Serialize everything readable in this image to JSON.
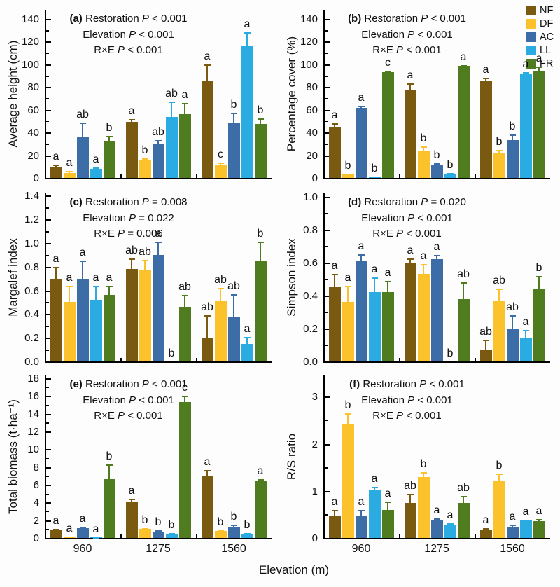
{
  "figure": {
    "xlabel": "Elevation (m)",
    "categories": [
      "960",
      "1275",
      "1560"
    ],
    "legend": [
      "NF",
      "DF",
      "AC",
      "LL",
      "FR"
    ],
    "colors": {
      "NF": "#7A5A10",
      "DF": "#FBC22C",
      "AC": "#3C6DA6",
      "LL": "#2AABE2",
      "FR": "#4E7C1E"
    },
    "axis_color": "#000000",
    "text_color": "#111111"
  },
  "chart_data": [
    {
      "type": "bar",
      "panel": "a",
      "ylabel": "Average height (cm)",
      "stats": [
        {
          "factor": "Restoration",
          "p": "< 0.001"
        },
        {
          "factor": "Elevation",
          "p": "< 0.001"
        },
        {
          "factor": "R×E",
          "p": "< 0.001"
        }
      ],
      "ymax": 148,
      "minor": 10,
      "yticks": [
        0,
        20,
        40,
        60,
        80,
        100,
        120,
        140
      ],
      "ytick_labels": [
        "0",
        "20",
        "40",
        "60",
        "80",
        "100",
        "120",
        "140"
      ],
      "categories": [
        "960",
        "1275",
        "1560"
      ],
      "show_x_labels": false,
      "series": [
        {
          "name": "NF",
          "values": [
            10,
            49.5,
            86
          ],
          "errors": [
            1.5,
            2,
            14
          ],
          "letters": [
            "a",
            "a",
            "a"
          ]
        },
        {
          "name": "DF",
          "values": [
            4.5,
            15.5,
            12
          ],
          "errors": [
            1.5,
            2,
            1.5
          ],
          "letters": [
            "a",
            "b",
            "c"
          ]
        },
        {
          "name": "AC",
          "values": [
            36,
            29.5,
            48.5
          ],
          "errors": [
            13,
            4,
            9
          ],
          "letters": [
            "ab",
            "ab",
            "b"
          ]
        },
        {
          "name": "LL",
          "values": [
            8,
            53.5,
            116.5
          ],
          "errors": [
            1.5,
            14,
            12
          ],
          "letters": [
            "a",
            "ab",
            "a"
          ]
        },
        {
          "name": "FR",
          "values": [
            32,
            56,
            47.5
          ],
          "errors": [
            5,
            10,
            5
          ],
          "letters": [
            "b",
            "a",
            "b"
          ]
        }
      ]
    },
    {
      "type": "bar",
      "panel": "b",
      "ylabel": "Percentage cover (%)",
      "stats": [
        {
          "factor": "Restoration",
          "p": "< 0.001"
        },
        {
          "factor": "Elevation",
          "p": "< 0.001"
        },
        {
          "factor": "R×E",
          "p": "< 0.001"
        }
      ],
      "ymax": 148,
      "minor": 10,
      "yticks": [
        0,
        20,
        40,
        60,
        80,
        100,
        120,
        140
      ],
      "ytick_labels": [
        "0",
        "20",
        "40",
        "60",
        "80",
        "100",
        "120",
        "140"
      ],
      "categories": [
        "960",
        "1275",
        "1560"
      ],
      "show_x_labels": false,
      "series": [
        {
          "name": "NF",
          "values": [
            45,
            77,
            86
          ],
          "errors": [
            3,
            6,
            2
          ],
          "letters": [
            "a",
            "a",
            "a"
          ]
        },
        {
          "name": "DF",
          "values": [
            3,
            23.5,
            22.5
          ],
          "errors": [
            1,
            4,
            2
          ],
          "letters": [
            "b",
            "b",
            "b"
          ]
        },
        {
          "name": "AC",
          "values": [
            61.5,
            11,
            33
          ],
          "errors": [
            2,
            2,
            5
          ],
          "letters": [
            "a",
            "b",
            "b"
          ]
        },
        {
          "name": "LL",
          "values": [
            1,
            3.5,
            92
          ],
          "errors": [
            0.5,
            1,
            1
          ],
          "letters": [
            "b",
            "b",
            "a"
          ]
        },
        {
          "name": "FR",
          "values": [
            93,
            98.5,
            94
          ],
          "errors": [
            1.5,
            1,
            4
          ],
          "letters": [
            "c",
            "a",
            "a"
          ]
        }
      ]
    },
    {
      "type": "bar",
      "panel": "c",
      "ylabel": "Margalef index",
      "stats": [
        {
          "factor": "Restoration",
          "p": "= 0.008"
        },
        {
          "factor": "Elevation",
          "p": "= 0.022"
        },
        {
          "factor": "R×E",
          "p": "= 0.006"
        }
      ],
      "ymax": 1.42,
      "minor": 0.1,
      "yticks": [
        0,
        0.2,
        0.4,
        0.6,
        0.8,
        1.0,
        1.2,
        1.4
      ],
      "ytick_labels": [
        "0.0",
        "0.2",
        "0.4",
        "0.6",
        "0.8",
        "1.0",
        "1.2",
        "1.4"
      ],
      "categories": [
        "960",
        "1275",
        "1560"
      ],
      "show_x_labels": false,
      "series": [
        {
          "name": "NF",
          "values": [
            0.69,
            0.78,
            0.2
          ],
          "errors": [
            0.11,
            0.09,
            0.19
          ],
          "letters": [
            "a",
            "ab",
            "ab"
          ]
        },
        {
          "name": "DF",
          "values": [
            0.5,
            0.77,
            0.51
          ],
          "errors": [
            0.14,
            0.09,
            0.11
          ],
          "letters": [
            "a",
            "ab",
            "ab"
          ]
        },
        {
          "name": "AC",
          "values": [
            0.7,
            0.9,
            0.38
          ],
          "errors": [
            0.15,
            0.11,
            0.19
          ],
          "letters": [
            "a",
            "a",
            "ab"
          ]
        },
        {
          "name": "LL",
          "values": [
            0.52,
            0,
            0.15
          ],
          "errors": [
            0.12,
            0,
            0.06
          ],
          "letters": [
            "a",
            "b",
            "a"
          ]
        },
        {
          "name": "FR",
          "values": [
            0.56,
            0.46,
            0.85
          ],
          "errors": [
            0.08,
            0.1,
            0.16
          ],
          "letters": [
            "a",
            "ab",
            "b"
          ]
        }
      ]
    },
    {
      "type": "bar",
      "panel": "d",
      "ylabel": "Simpson index",
      "stats": [
        {
          "factor": "Restoration",
          "p": "= 0.020"
        },
        {
          "factor": "Elevation",
          "p": "< 0.001"
        },
        {
          "factor": "R×E",
          "p": "< 0.001"
        }
      ],
      "ymax": 1.02,
      "minor": 0.1,
      "yticks": [
        0,
        0.2,
        0.4,
        0.6,
        0.8,
        1.0
      ],
      "ytick_labels": [
        "0.0",
        "0.2",
        "0.4",
        "0.6",
        "0.8",
        "1.0"
      ],
      "categories": [
        "960",
        "1275",
        "1560"
      ],
      "show_x_labels": false,
      "series": [
        {
          "name": "NF",
          "values": [
            0.45,
            0.6,
            0.07
          ],
          "errors": [
            0.08,
            0.025,
            0.06
          ],
          "letters": [
            "a",
            "a",
            "ab"
          ]
        },
        {
          "name": "DF",
          "values": [
            0.36,
            0.53,
            0.37
          ],
          "errors": [
            0.1,
            0.06,
            0.07
          ],
          "letters": [
            "a",
            "a",
            "ab"
          ]
        },
        {
          "name": "AC",
          "values": [
            0.61,
            0.62,
            0.2
          ],
          "errors": [
            0.04,
            0.025,
            0.08
          ],
          "letters": [
            "a",
            "a",
            "ab"
          ]
        },
        {
          "name": "LL",
          "values": [
            0.42,
            0,
            0.14
          ],
          "errors": [
            0.09,
            0,
            0.05
          ],
          "letters": [
            "a",
            "b",
            "a"
          ]
        },
        {
          "name": "FR",
          "values": [
            0.42,
            0.38,
            0.44
          ],
          "errors": [
            0.07,
            0.1,
            0.08
          ],
          "letters": [
            "a",
            "ab",
            "b"
          ]
        }
      ]
    },
    {
      "type": "bar",
      "panel": "e",
      "ylabel": "Total biomass (t·ha⁻¹)",
      "stats": [
        {
          "factor": "Restoration",
          "p": "< 0.001"
        },
        {
          "factor": "Elevation",
          "p": "< 0.001"
        },
        {
          "factor": "R×E",
          "p": "< 0.001"
        }
      ],
      "ymax": 18.3,
      "minor": 1,
      "yticks": [
        0,
        2,
        4,
        6,
        8,
        10,
        12,
        14,
        16,
        18
      ],
      "ytick_labels": [
        "0",
        "2",
        "4",
        "6",
        "8",
        "10",
        "12",
        "14",
        "16",
        "18"
      ],
      "categories": [
        "960",
        "1275",
        "1560"
      ],
      "show_x_labels": true,
      "series": [
        {
          "name": "NF",
          "values": [
            0.85,
            4.1,
            7.0
          ],
          "errors": [
            0.15,
            0.35,
            0.65
          ],
          "letters": [
            "a",
            "a",
            "a"
          ]
        },
        {
          "name": "DF",
          "values": [
            0.12,
            1.0,
            0.75
          ],
          "errors": [
            0.05,
            0.1,
            0.1
          ],
          "letters": [
            "a",
            "b",
            "b"
          ]
        },
        {
          "name": "AC",
          "values": [
            1.1,
            0.6,
            1.15
          ],
          "errors": [
            0.15,
            0.25,
            0.35
          ],
          "letters": [
            "a",
            "b",
            "b"
          ]
        },
        {
          "name": "LL",
          "values": [
            0.05,
            0.45,
            0.45
          ],
          "errors": [
            0.02,
            0.1,
            0.08
          ],
          "letters": [
            "a",
            "b",
            "b"
          ]
        },
        {
          "name": "FR",
          "values": [
            6.6,
            15.3,
            6.4
          ],
          "errors": [
            1.7,
            0.7,
            0.25
          ],
          "letters": [
            "b",
            "c",
            "a"
          ]
        }
      ]
    },
    {
      "type": "bar",
      "panel": "f",
      "ylabel": "R/S ratio",
      "stats": [
        {
          "factor": "Restoration",
          "p": "< 0.001"
        },
        {
          "factor": "Elevation",
          "p": "< 0.001"
        },
        {
          "factor": "R×E",
          "p": "< 0.001"
        }
      ],
      "ymax": 3.45,
      "minor": 0.5,
      "yticks": [
        0,
        1,
        2,
        3
      ],
      "ytick_labels": [
        "0",
        "1",
        "2",
        "3"
      ],
      "categories": [
        "960",
        "1275",
        "1560"
      ],
      "show_x_labels": true,
      "series": [
        {
          "name": "NF",
          "values": [
            0.48,
            0.75,
            0.18
          ],
          "errors": [
            0.12,
            0.18,
            0.03
          ],
          "letters": [
            "a",
            "ab",
            "a"
          ]
        },
        {
          "name": "DF",
          "values": [
            2.42,
            1.3,
            1.22
          ],
          "errors": [
            0.22,
            0.1,
            0.15
          ],
          "letters": [
            "b",
            "b",
            "b"
          ]
        },
        {
          "name": "AC",
          "values": [
            0.48,
            0.38,
            0.22
          ],
          "errors": [
            0.12,
            0.04,
            0.06
          ],
          "letters": [
            "a",
            "a",
            "a"
          ]
        },
        {
          "name": "LL",
          "values": [
            1.01,
            0.28,
            0.37
          ],
          "errors": [
            0.07,
            0.03,
            0.02
          ],
          "letters": [
            "a",
            "a",
            "a"
          ]
        },
        {
          "name": "FR",
          "values": [
            0.6,
            0.74,
            0.35
          ],
          "errors": [
            0.17,
            0.15,
            0.05
          ],
          "letters": [
            "a",
            "ab",
            "a"
          ]
        }
      ]
    }
  ]
}
